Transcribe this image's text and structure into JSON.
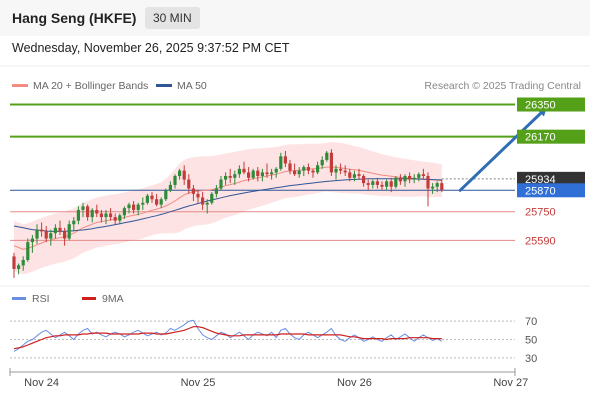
{
  "header": {
    "title": "Hang Seng (HKFE)",
    "timeframe": "30 MIN",
    "datetime": "Wednesday, November 26, 2025 9:37:52 PM CET"
  },
  "legend": {
    "items": [
      {
        "label": "MA 20 + Bollinger Bands",
        "color": "#f28b82"
      },
      {
        "label": "MA 50",
        "color": "#2f5597"
      }
    ],
    "credit": "Research © 2025 Trading Central"
  },
  "colors": {
    "bull": "#2e8b3a",
    "bear": "#c43b3b",
    "band_fill": "#fde3e3",
    "ma20": "#f28b82",
    "ma50": "#2f5597",
    "resistance": "#54a018",
    "support": "#e58a8a",
    "current": "#2f5597",
    "arrow": "#2f6db5",
    "rsi": "#6a8fe0",
    "rsi_ma": "#d01f1f"
  },
  "chart_data": [
    {
      "type": "candlestick",
      "title": "",
      "ylim": [
        25340,
        26420
      ],
      "levels": [
        {
          "value": 26350,
          "label": "26350",
          "kind": "resistance"
        },
        {
          "value": 26170,
          "label": "26170",
          "kind": "resistance"
        },
        {
          "value": 25934,
          "label": "25934",
          "kind": "last-close"
        },
        {
          "value": 25870,
          "label": "25870",
          "kind": "current"
        },
        {
          "value": 25750,
          "label": "25750",
          "kind": "support"
        },
        {
          "value": 25590,
          "label": "25590",
          "kind": "support"
        }
      ],
      "candles": [
        [
          25500,
          25520,
          25380,
          25430
        ],
        [
          25430,
          25460,
          25400,
          25450
        ],
        [
          25450,
          25500,
          25420,
          25480
        ],
        [
          25480,
          25600,
          25470,
          25580
        ],
        [
          25580,
          25620,
          25520,
          25600
        ],
        [
          25600,
          25680,
          25570,
          25650
        ],
        [
          25650,
          25690,
          25610,
          25640
        ],
        [
          25640,
          25670,
          25580,
          25600
        ],
        [
          25600,
          25650,
          25560,
          25630
        ],
        [
          25630,
          25680,
          25600,
          25660
        ],
        [
          25660,
          25700,
          25620,
          25640
        ],
        [
          25640,
          25660,
          25560,
          25600
        ],
        [
          25600,
          25700,
          25590,
          25680
        ],
        [
          25680,
          25720,
          25640,
          25700
        ],
        [
          25700,
          25780,
          25680,
          25760
        ],
        [
          25760,
          25800,
          25720,
          25780
        ],
        [
          25780,
          25790,
          25700,
          25720
        ],
        [
          25720,
          25770,
          25690,
          25760
        ],
        [
          25760,
          25790,
          25720,
          25740
        ],
        [
          25740,
          25760,
          25690,
          25720
        ],
        [
          25720,
          25760,
          25680,
          25740
        ],
        [
          25740,
          25770,
          25700,
          25720
        ],
        [
          25720,
          25740,
          25680,
          25700
        ],
        [
          25700,
          25740,
          25680,
          25730
        ],
        [
          25730,
          25780,
          25710,
          25770
        ],
        [
          25770,
          25800,
          25740,
          25790
        ],
        [
          25790,
          25810,
          25740,
          25760
        ],
        [
          25760,
          25800,
          25730,
          25790
        ],
        [
          25790,
          25830,
          25760,
          25800
        ],
        [
          25800,
          25850,
          25790,
          25840
        ],
        [
          25840,
          25860,
          25800,
          25820
        ],
        [
          25820,
          25850,
          25780,
          25790
        ],
        [
          25790,
          25830,
          25770,
          25820
        ],
        [
          25820,
          25880,
          25810,
          25870
        ],
        [
          25870,
          25920,
          25860,
          25900
        ],
        [
          25900,
          25960,
          25880,
          25950
        ],
        [
          25950,
          25990,
          25930,
          25980
        ],
        [
          25980,
          26010,
          25900,
          25930
        ],
        [
          25930,
          25960,
          25850,
          25880
        ],
        [
          25880,
          25900,
          25810,
          25850
        ],
        [
          25850,
          25870,
          25800,
          25830
        ],
        [
          25830,
          25860,
          25760,
          25790
        ],
        [
          25790,
          25820,
          25740,
          25800
        ],
        [
          25800,
          25860,
          25790,
          25850
        ],
        [
          25850,
          25900,
          25830,
          25880
        ],
        [
          25880,
          25950,
          25870,
          25930
        ],
        [
          25930,
          25970,
          25900,
          25950
        ],
        [
          25950,
          25990,
          25910,
          25940
        ],
        [
          25940,
          25980,
          25900,
          25960
        ],
        [
          25960,
          26010,
          25940,
          25990
        ],
        [
          25990,
          26030,
          25960,
          25970
        ],
        [
          25970,
          26000,
          25920,
          25940
        ],
        [
          25940,
          25990,
          25930,
          25980
        ],
        [
          25980,
          26000,
          25920,
          25950
        ],
        [
          25950,
          25990,
          25920,
          25970
        ],
        [
          25970,
          26020,
          25940,
          25960
        ],
        [
          25960,
          25990,
          25930,
          25970
        ],
        [
          25970,
          26000,
          25940,
          25990
        ],
        [
          25990,
          26080,
          25980,
          26060
        ],
        [
          26060,
          26090,
          26000,
          26020
        ],
        [
          26020,
          26040,
          25960,
          25980
        ],
        [
          25980,
          26020,
          25950,
          25960
        ],
        [
          25960,
          26000,
          25940,
          25980
        ],
        [
          25980,
          26010,
          25950,
          26000
        ],
        [
          26000,
          26020,
          25960,
          25980
        ],
        [
          25980,
          25990,
          25940,
          25970
        ],
        [
          25970,
          26030,
          25960,
          26010
        ],
        [
          26010,
          26060,
          25990,
          26040
        ],
        [
          26040,
          26090,
          26030,
          26080
        ],
        [
          26080,
          26100,
          25950,
          25970
        ],
        [
          25970,
          26010,
          25930,
          25990
        ],
        [
          25990,
          26020,
          25960,
          25980
        ],
        [
          25980,
          26010,
          25950,
          25970
        ],
        [
          25970,
          25990,
          25920,
          25940
        ],
        [
          25940,
          25980,
          25920,
          25960
        ],
        [
          25960,
          25990,
          25930,
          25950
        ],
        [
          25950,
          25960,
          25890,
          25910
        ],
        [
          25910,
          25930,
          25870,
          25900
        ],
        [
          25900,
          25930,
          25880,
          25920
        ],
        [
          25920,
          25940,
          25880,
          25900
        ],
        [
          25900,
          25920,
          25870,
          25890
        ],
        [
          25890,
          25930,
          25870,
          25920
        ],
        [
          25920,
          25940,
          25860,
          25890
        ],
        [
          25890,
          25950,
          25880,
          25940
        ],
        [
          25940,
          25960,
          25900,
          25920
        ],
        [
          25920,
          25960,
          25890,
          25950
        ],
        [
          25950,
          25970,
          25910,
          25930
        ],
        [
          25930,
          25960,
          25910,
          25940
        ],
        [
          25940,
          25970,
          25920,
          25960
        ],
        [
          25960,
          25990,
          25930,
          25950
        ],
        [
          25950,
          25970,
          25780,
          25880
        ],
        [
          25880,
          25910,
          25850,
          25890
        ],
        [
          25890,
          25920,
          25860,
          25910
        ],
        [
          25910,
          25930,
          25860,
          25870
        ]
      ],
      "ma20": [
        25560,
        25550,
        25540,
        25545,
        25555,
        25565,
        25575,
        25585,
        25592,
        25600,
        25605,
        25610,
        25620,
        25630,
        25645,
        25660,
        25670,
        25680,
        25690,
        25695,
        25700,
        25705,
        25708,
        25712,
        25718,
        25725,
        25730,
        25735,
        25742,
        25750,
        25758,
        25765,
        25772,
        25782,
        25795,
        25810,
        25828,
        25845,
        25855,
        25862,
        25866,
        25868,
        25870,
        25874,
        25880,
        25888,
        25896,
        25902,
        25908,
        25916,
        25924,
        25930,
        25935,
        25940,
        25945,
        25950,
        25955,
        25960,
        25968,
        25975,
        25978,
        25980,
        25982,
        25985,
        25988,
        25990,
        25992,
        25996,
        26000,
        26000,
        25998,
        25995,
        25992,
        25988,
        25985,
        25982,
        25976,
        25970,
        25965,
        25960,
        25955,
        25952,
        25948,
        25945,
        25942,
        25940,
        25938,
        25936,
        25935,
        25934,
        25930,
        25928,
        25926,
        25924
      ],
      "bb_upper": [
        25700,
        25690,
        25680,
        25685,
        25695,
        25705,
        25715,
        25725,
        25732,
        25740,
        25745,
        25750,
        25760,
        25770,
        25785,
        25800,
        25810,
        25820,
        25830,
        25835,
        25840,
        25845,
        25848,
        25852,
        25858,
        25865,
        25870,
        25875,
        25882,
        25890,
        25898,
        25905,
        25915,
        25935,
        25960,
        25990,
        26020,
        26040,
        26050,
        26055,
        26058,
        26060,
        26060,
        26062,
        26065,
        26070,
        26076,
        26080,
        26085,
        26090,
        26095,
        26100,
        26102,
        26104,
        26106,
        26108,
        26110,
        26112,
        26118,
        26124,
        26127,
        26128,
        26128,
        26129,
        26130,
        26130,
        26130,
        26132,
        26136,
        26140,
        26138,
        26135,
        26130,
        26124,
        26118,
        26112,
        26104,
        26096,
        26088,
        26080,
        26072,
        26066,
        26060,
        26055,
        26050,
        26046,
        26042,
        26038,
        26034,
        26030,
        26028,
        26024,
        26020,
        26016
      ],
      "bb_lower": [
        25420,
        25410,
        25400,
        25405,
        25415,
        25425,
        25435,
        25445,
        25452,
        25460,
        25465,
        25470,
        25480,
        25490,
        25505,
        25520,
        25530,
        25540,
        25550,
        25555,
        25560,
        25565,
        25568,
        25572,
        25578,
        25585,
        25590,
        25595,
        25602,
        25610,
        25618,
        25625,
        25629,
        25629,
        25630,
        25630,
        25636,
        25650,
        25660,
        25669,
        25674,
        25676,
        25680,
        25686,
        25695,
        25706,
        25716,
        25724,
        25731,
        25742,
        25753,
        25760,
        25768,
        25776,
        25784,
        25792,
        25800,
        25808,
        25818,
        25826,
        25829,
        25832,
        25836,
        25841,
        25846,
        25850,
        25854,
        25860,
        25864,
        25860,
        25858,
        25855,
        25854,
        25852,
        25852,
        25852,
        25848,
        25844,
        25842,
        25840,
        25838,
        25838,
        25836,
        25835,
        25834,
        25834,
        25834,
        25834,
        25836,
        25838,
        25832,
        25832,
        25832,
        25832
      ],
      "ma50": [
        25670,
        25665,
        25660,
        25655,
        25650,
        25648,
        25645,
        25642,
        25640,
        25640,
        25640,
        25641,
        25642,
        25644,
        25646,
        25648,
        25651,
        25655,
        25660,
        25664,
        25668,
        25673,
        25678,
        25683,
        25688,
        25693,
        25698,
        25704,
        25710,
        25716,
        25722,
        25728,
        25735,
        25742,
        25750,
        25758,
        25766,
        25774,
        25782,
        25789,
        25796,
        25803,
        25810,
        25816,
        25822,
        25828,
        25834,
        25840,
        25845,
        25850,
        25855,
        25860,
        25864,
        25868,
        25872,
        25876,
        25880,
        25884,
        25888,
        25892,
        25896,
        25899,
        25902,
        25905,
        25908,
        25911,
        25914,
        25917,
        25920,
        25922,
        25924,
        25926,
        25928,
        25930,
        25931,
        25932,
        25933,
        25934,
        25935,
        25935,
        25935,
        25935,
        25935,
        25935,
        25935,
        25934,
        25934,
        25933,
        25933,
        25932,
        25931,
        25930,
        25929,
        25928
      ],
      "x_labels": [
        {
          "label": "Nov 24",
          "index": 6
        },
        {
          "label": "Nov 25",
          "index": 40
        },
        {
          "label": "Nov 26",
          "index": 74
        },
        {
          "label": "Nov 27",
          "index": 108
        }
      ],
      "projection": {
        "from": [
          25870,
          97
        ],
        "to": [
          26350,
          116
        ]
      }
    },
    {
      "type": "line",
      "title": "",
      "legend": [
        {
          "name": "RSI",
          "color": "#6a8fe0"
        },
        {
          "name": "9MA",
          "color": "#d01f1f"
        }
      ],
      "ylim": [
        20,
        80
      ],
      "y_ticks": [
        70,
        50,
        30
      ],
      "rsi": [
        37,
        40,
        44,
        48,
        50,
        54,
        58,
        60,
        56,
        52,
        55,
        58,
        54,
        50,
        56,
        60,
        62,
        56,
        58,
        55,
        53,
        56,
        58,
        56,
        53,
        55,
        58,
        60,
        57,
        54,
        56,
        58,
        55,
        57,
        62,
        60,
        63,
        66,
        70,
        71,
        62,
        55,
        52,
        50,
        54,
        58,
        56,
        52,
        55,
        58,
        54,
        50,
        55,
        58,
        56,
        54,
        58,
        52,
        60,
        62,
        56,
        52,
        50,
        55,
        58,
        55,
        52,
        55,
        58,
        62,
        54,
        50,
        48,
        52,
        55,
        52,
        48,
        50,
        53,
        50,
        48,
        52,
        55,
        50,
        53,
        56,
        52,
        48,
        52,
        55,
        52,
        49,
        51,
        48
      ],
      "rsi_ma": [
        40,
        41,
        42,
        44,
        46,
        48,
        50,
        52,
        53,
        54,
        54,
        55,
        55,
        55,
        55,
        56,
        56,
        57,
        57,
        57,
        57,
        56,
        56,
        56,
        56,
        56,
        56,
        56,
        57,
        57,
        57,
        56,
        56,
        56,
        57,
        58,
        59,
        60,
        62,
        64,
        64,
        63,
        61,
        59,
        57,
        56,
        55,
        54,
        54,
        54,
        55,
        55,
        55,
        55,
        55,
        55,
        55,
        55,
        56,
        56,
        56,
        56,
        56,
        56,
        55,
        55,
        55,
        55,
        55,
        55,
        55,
        55,
        54,
        53,
        53,
        52,
        51,
        51,
        51,
        51,
        51,
        50,
        51,
        51,
        51,
        51,
        52,
        52,
        52,
        52,
        52,
        51,
        51,
        51
      ]
    }
  ]
}
